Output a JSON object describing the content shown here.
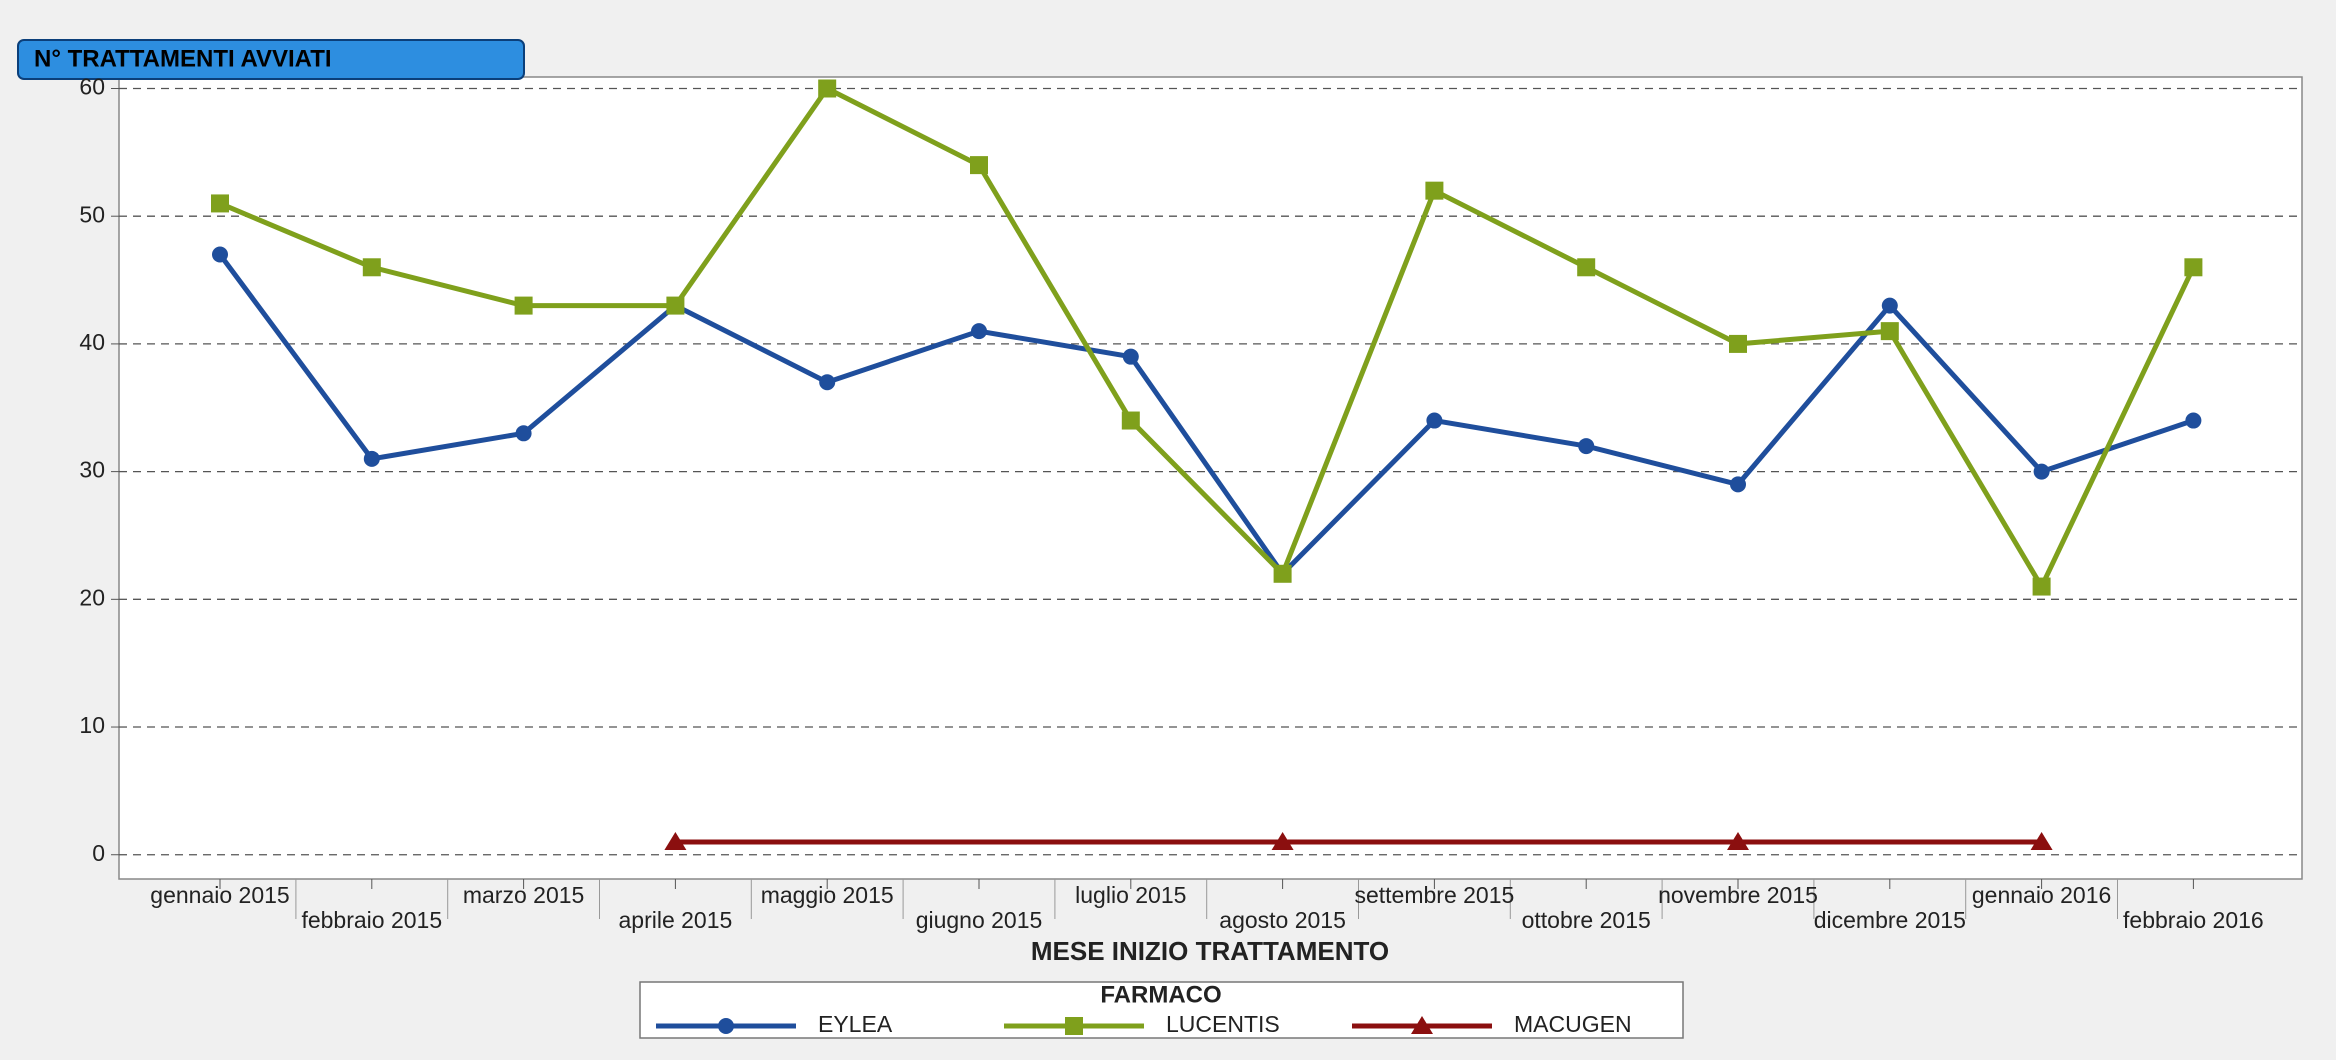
{
  "chart_data": {
    "type": "line",
    "title": "N° TRATTAMENTI AVVIATI",
    "x_label": "MESE INIZIO TRATTAMENTO",
    "legend_title": "FARMACO",
    "categories": [
      "gennaio 2015",
      "febbraio 2015",
      "marzo 2015",
      "aprile 2015",
      "maggio 2015",
      "giugno 2015",
      "luglio 2015",
      "agosto 2015",
      "settembre 2015",
      "ottobre 2015",
      "novembre 2015",
      "dicembre 2015",
      "gennaio 2016",
      "febbraio 2016"
    ],
    "series": [
      {
        "name": "EYLEA",
        "color": "#1f4e9c",
        "marker": "circle",
        "values": [
          47,
          31,
          33,
          43,
          37,
          41,
          39,
          22,
          34,
          32,
          29,
          43,
          30,
          34
        ]
      },
      {
        "name": "LUCENTIS",
        "color": "#7fa01c",
        "marker": "square",
        "values": [
          51,
          46,
          43,
          43,
          60,
          54,
          34,
          22,
          52,
          46,
          40,
          41,
          21,
          46
        ]
      },
      {
        "name": "MACUGEN",
        "color": "#8b0f0f",
        "marker": "triangle",
        "x": [
          "aprile 2015",
          "agosto 2015",
          "novembre 2015",
          "gennaio 2016"
        ],
        "values": [
          1,
          1,
          1,
          1
        ]
      }
    ],
    "ylim": [
      -1.9,
      60.9
    ],
    "yticks": [
      0,
      10,
      20,
      30,
      40,
      50,
      60
    ],
    "grid": true
  }
}
